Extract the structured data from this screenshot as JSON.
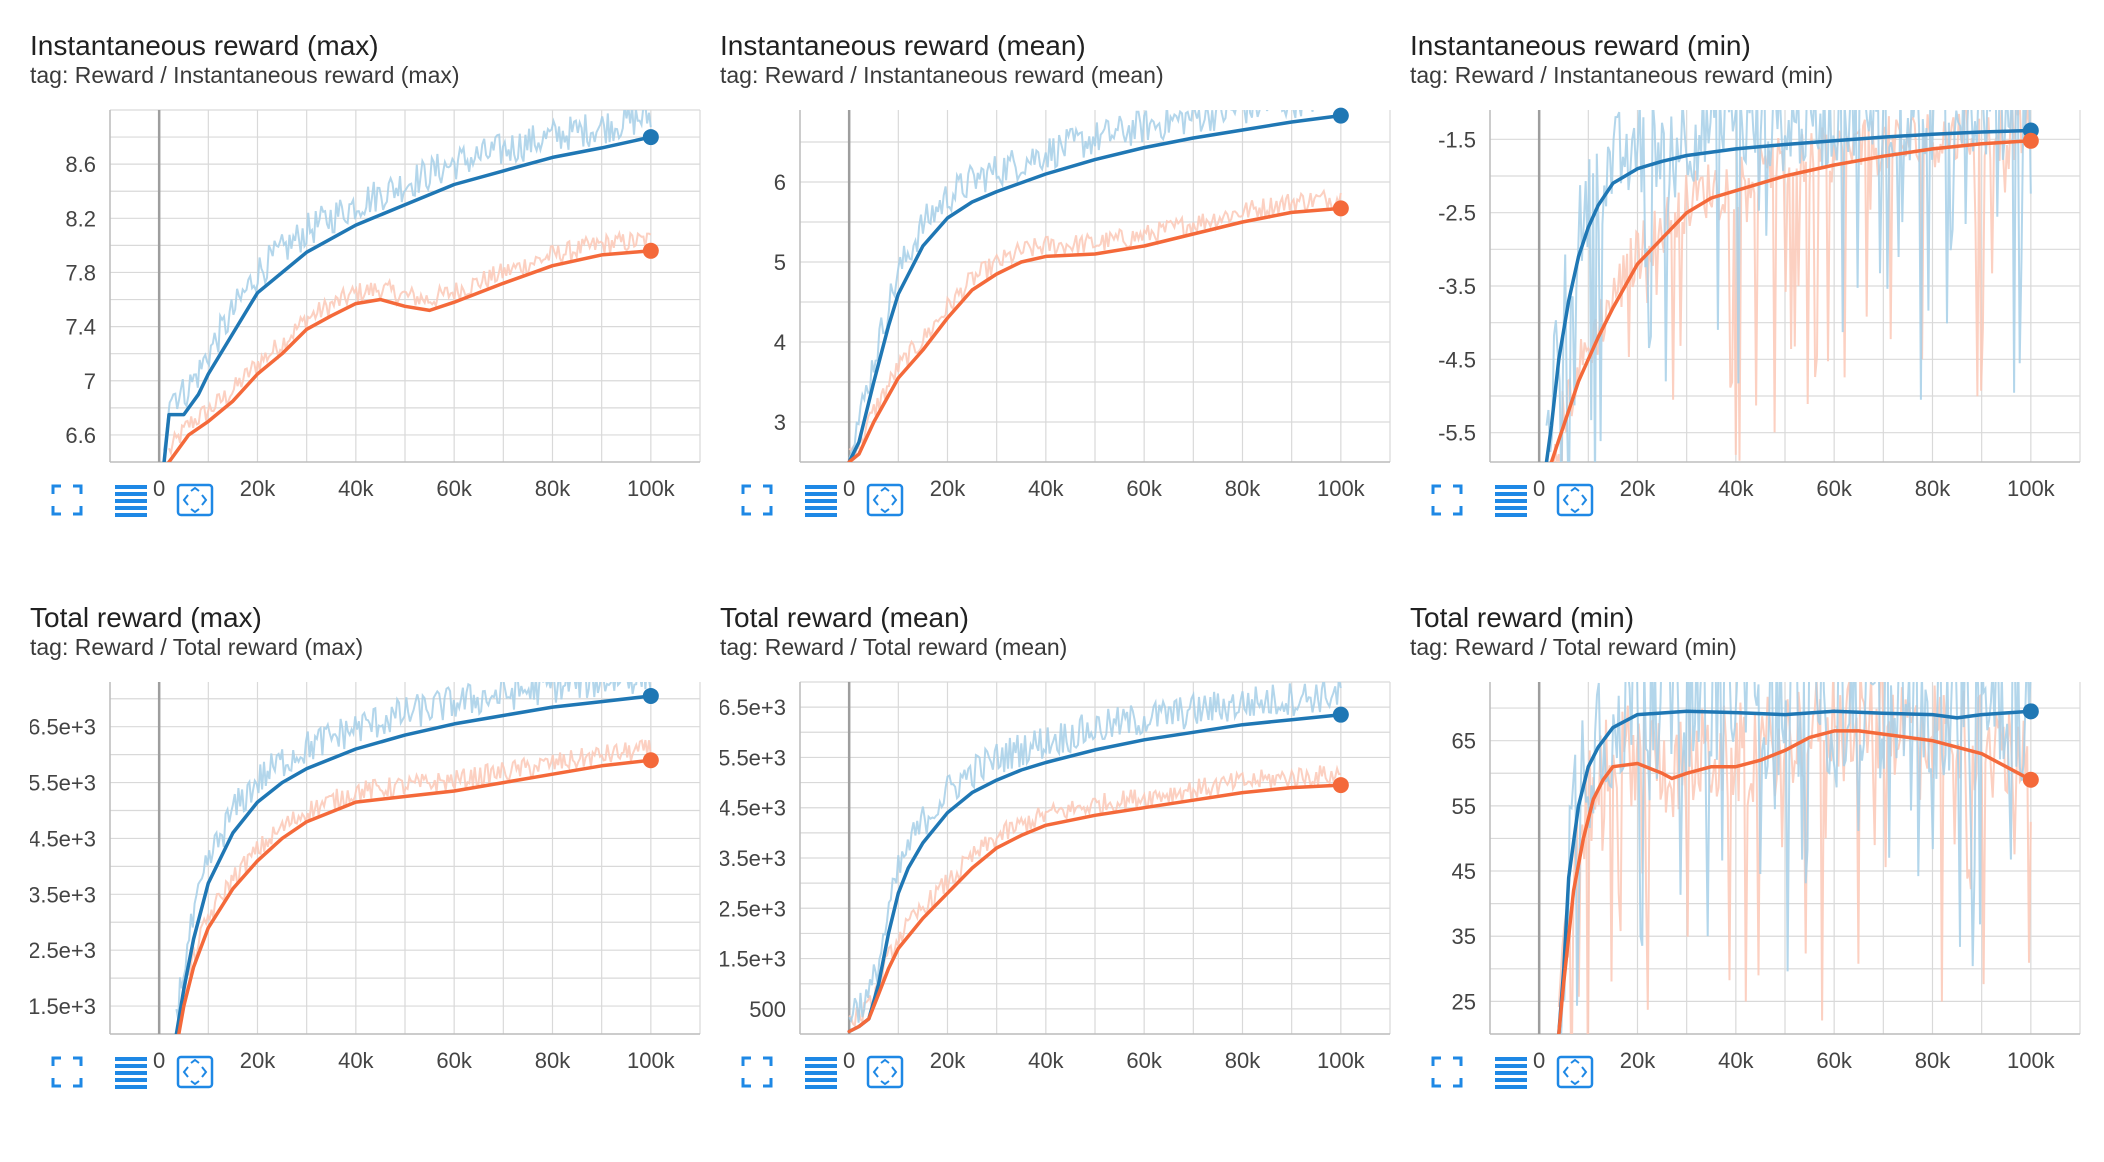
{
  "colors": {
    "blue": "#1f77b4",
    "blue_raw": "#a6cfe8",
    "orange": "#f4693a",
    "orange_raw": "#fcc8b6",
    "grid": "#d9d9d9",
    "tool_icon": "#1e88e5"
  },
  "toolbar_icons": [
    "fullscreen-icon",
    "data-table-icon",
    "fit-domain-icon"
  ],
  "chart_data": [
    {
      "type": "line",
      "title": "Instantaneous reward (max)",
      "tag": "tag: Reward / Instantaneous reward (max)",
      "xlim": [
        -10000,
        110000
      ],
      "ylim": [
        6.4,
        9.0
      ],
      "xticks": [
        0,
        20000,
        40000,
        60000,
        80000,
        100000
      ],
      "xtick_labels": [
        "0",
        "20k",
        "40k",
        "60k",
        "80k",
        "100k"
      ],
      "yticks": [
        6.6,
        7.0,
        7.4,
        7.8,
        8.2,
        8.6
      ],
      "ytick_labels": [
        "6.6",
        "7",
        "7.4",
        "7.8",
        "8.2",
        "8.6"
      ],
      "series": [
        {
          "color_key": "blue",
          "x": [
            1000,
            2000,
            3000,
            5000,
            8000,
            10000,
            15000,
            20000,
            25000,
            30000,
            40000,
            50000,
            60000,
            70000,
            80000,
            90000,
            100000
          ],
          "y": [
            6.4,
            6.75,
            6.75,
            6.75,
            6.9,
            7.05,
            7.35,
            7.65,
            7.8,
            7.95,
            8.15,
            8.3,
            8.45,
            8.55,
            8.65,
            8.72,
            8.8
          ]
        },
        {
          "color_key": "orange",
          "x": [
            2000,
            4000,
            6000,
            10000,
            15000,
            20000,
            25000,
            30000,
            35000,
            40000,
            45000,
            50000,
            55000,
            60000,
            70000,
            80000,
            90000,
            100000
          ],
          "y": [
            6.4,
            6.5,
            6.6,
            6.7,
            6.85,
            7.05,
            7.2,
            7.38,
            7.48,
            7.57,
            7.6,
            7.55,
            7.52,
            7.58,
            7.72,
            7.85,
            7.93,
            7.96
          ]
        }
      ]
    },
    {
      "type": "line",
      "title": "Instantaneous reward (mean)",
      "tag": "tag: Reward / Instantaneous reward (mean)",
      "xlim": [
        -10000,
        110000
      ],
      "ylim": [
        2.5,
        6.9
      ],
      "xticks": [
        0,
        20000,
        40000,
        60000,
        80000,
        100000
      ],
      "xtick_labels": [
        "0",
        "20k",
        "40k",
        "60k",
        "80k",
        "100k"
      ],
      "yticks": [
        3,
        4,
        5,
        6
      ],
      "ytick_labels": [
        "3",
        "4",
        "5",
        "6"
      ],
      "series": [
        {
          "color_key": "blue",
          "x": [
            0,
            2000,
            5000,
            8000,
            10000,
            15000,
            20000,
            25000,
            30000,
            40000,
            50000,
            60000,
            70000,
            80000,
            90000,
            100000
          ],
          "y": [
            2.5,
            2.75,
            3.5,
            4.2,
            4.6,
            5.2,
            5.55,
            5.75,
            5.88,
            6.1,
            6.28,
            6.43,
            6.55,
            6.65,
            6.75,
            6.83
          ]
        },
        {
          "color_key": "orange",
          "x": [
            0,
            2000,
            5000,
            10000,
            15000,
            20000,
            25000,
            30000,
            35000,
            40000,
            50000,
            60000,
            70000,
            80000,
            90000,
            100000
          ],
          "y": [
            2.5,
            2.6,
            3.0,
            3.55,
            3.9,
            4.3,
            4.65,
            4.85,
            5.0,
            5.07,
            5.1,
            5.2,
            5.35,
            5.5,
            5.62,
            5.67
          ]
        }
      ]
    },
    {
      "type": "line",
      "title": "Instantaneous reward (min)",
      "tag": "tag: Reward / Instantaneous reward (min)",
      "xlim": [
        -10000,
        110000
      ],
      "ylim": [
        -5.9,
        -1.1
      ],
      "xticks": [
        0,
        20000,
        40000,
        60000,
        80000,
        100000
      ],
      "xtick_labels": [
        "0",
        "20k",
        "40k",
        "60k",
        "80k",
        "100k"
      ],
      "yticks": [
        -5.5,
        -4.5,
        -3.5,
        -2.5,
        -1.5
      ],
      "ytick_labels": [
        "-5.5",
        "-4.5",
        "-3.5",
        "-2.5",
        "-1.5"
      ],
      "series": [
        {
          "color_key": "blue",
          "x": [
            1500,
            2500,
            4000,
            6000,
            8000,
            10000,
            12000,
            15000,
            20000,
            25000,
            30000,
            40000,
            50000,
            60000,
            70000,
            80000,
            90000,
            100000
          ],
          "y": [
            -5.9,
            -5.4,
            -4.5,
            -3.7,
            -3.1,
            -2.7,
            -2.4,
            -2.1,
            -1.9,
            -1.8,
            -1.72,
            -1.63,
            -1.57,
            -1.52,
            -1.47,
            -1.43,
            -1.4,
            -1.38
          ]
        },
        {
          "color_key": "orange",
          "x": [
            2500,
            4000,
            6000,
            8000,
            10000,
            12000,
            15000,
            20000,
            25000,
            30000,
            35000,
            40000,
            50000,
            60000,
            70000,
            80000,
            90000,
            100000
          ],
          "y": [
            -5.9,
            -5.6,
            -5.2,
            -4.8,
            -4.5,
            -4.2,
            -3.8,
            -3.2,
            -2.85,
            -2.5,
            -2.3,
            -2.2,
            -2.0,
            -1.85,
            -1.73,
            -1.63,
            -1.56,
            -1.52
          ]
        }
      ]
    },
    {
      "type": "line",
      "title": "Total reward (max)",
      "tag": "tag: Reward / Total reward (max)",
      "xlim": [
        -10000,
        110000
      ],
      "ylim": [
        1000,
        7300
      ],
      "xticks": [
        0,
        20000,
        40000,
        60000,
        80000,
        100000
      ],
      "xtick_labels": [
        "0",
        "20k",
        "40k",
        "60k",
        "80k",
        "100k"
      ],
      "yticks": [
        1500,
        2500,
        3500,
        4500,
        5500,
        6500
      ],
      "ytick_labels": [
        "1.5e+3",
        "2.5e+3",
        "3.5e+3",
        "4.5e+3",
        "5.5e+3",
        "6.5e+3"
      ],
      "series": [
        {
          "color_key": "blue",
          "x": [
            3500,
            5000,
            7000,
            10000,
            15000,
            20000,
            25000,
            30000,
            40000,
            50000,
            60000,
            70000,
            80000,
            90000,
            100000
          ],
          "y": [
            1000,
            1800,
            2700,
            3700,
            4600,
            5150,
            5500,
            5750,
            6100,
            6350,
            6550,
            6700,
            6850,
            6950,
            7050
          ]
        },
        {
          "color_key": "orange",
          "x": [
            4000,
            5000,
            7000,
            10000,
            15000,
            20000,
            25000,
            30000,
            40000,
            50000,
            60000,
            70000,
            80000,
            90000,
            100000
          ],
          "y": [
            1000,
            1500,
            2200,
            2900,
            3600,
            4100,
            4500,
            4800,
            5150,
            5250,
            5350,
            5500,
            5650,
            5800,
            5900
          ]
        }
      ]
    },
    {
      "type": "line",
      "title": "Total reward (mean)",
      "tag": "tag: Reward / Total reward (mean)",
      "xlim": [
        -10000,
        110000
      ],
      "ylim": [
        0,
        7000
      ],
      "xticks": [
        0,
        20000,
        40000,
        60000,
        80000,
        100000
      ],
      "xtick_labels": [
        "0",
        "20k",
        "40k",
        "60k",
        "80k",
        "100k"
      ],
      "yticks": [
        500,
        1500,
        2500,
        3500,
        4500,
        5500,
        6500
      ],
      "ytick_labels": [
        "500",
        "1.5e+3",
        "2.5e+3",
        "3.5e+3",
        "4.5e+3",
        "5.5e+3",
        "6.5e+3"
      ],
      "series": [
        {
          "color_key": "blue",
          "x": [
            0,
            2000,
            4000,
            6000,
            8000,
            10000,
            12000,
            15000,
            20000,
            25000,
            30000,
            35000,
            40000,
            50000,
            60000,
            70000,
            80000,
            90000,
            100000
          ],
          "y": [
            50,
            150,
            300,
            1000,
            2000,
            2800,
            3300,
            3800,
            4400,
            4800,
            5050,
            5250,
            5400,
            5650,
            5850,
            6000,
            6150,
            6250,
            6350
          ]
        },
        {
          "color_key": "orange",
          "x": [
            0,
            2000,
            4000,
            6000,
            8000,
            10000,
            15000,
            20000,
            25000,
            30000,
            35000,
            40000,
            50000,
            60000,
            70000,
            80000,
            90000,
            100000
          ],
          "y": [
            50,
            150,
            300,
            800,
            1300,
            1700,
            2300,
            2800,
            3300,
            3700,
            3950,
            4150,
            4350,
            4500,
            4650,
            4800,
            4900,
            4950
          ]
        }
      ]
    },
    {
      "type": "line",
      "title": "Total reward (min)",
      "tag": "tag: Reward / Total reward (min)",
      "xlim": [
        -10000,
        110000
      ],
      "ylim": [
        20,
        74
      ],
      "xticks": [
        0,
        20000,
        40000,
        60000,
        80000,
        100000
      ],
      "xtick_labels": [
        "0",
        "20k",
        "40k",
        "60k",
        "80k",
        "100k"
      ],
      "yticks": [
        25,
        35,
        45,
        55,
        65
      ],
      "ytick_labels": [
        "25",
        "35",
        "45",
        "55",
        "65"
      ],
      "series": [
        {
          "color_key": "blue",
          "x": [
            4000,
            5000,
            6000,
            8000,
            10000,
            12000,
            15000,
            20000,
            30000,
            40000,
            50000,
            60000,
            70000,
            80000,
            85000,
            90000,
            100000
          ],
          "y": [
            20,
            30,
            44,
            55,
            61,
            64,
            67,
            69,
            69.5,
            69.3,
            69,
            69.5,
            69.2,
            69,
            68.5,
            69,
            69.5
          ]
        },
        {
          "color_key": "orange",
          "x": [
            4000,
            5000,
            7000,
            9000,
            11000,
            13000,
            15000,
            20000,
            25000,
            27000,
            30000,
            35000,
            40000,
            45000,
            50000,
            55000,
            60000,
            65000,
            70000,
            80000,
            90000,
            100000
          ],
          "y": [
            20,
            28,
            42,
            50,
            56,
            59,
            61,
            61.5,
            60,
            59.2,
            60,
            61,
            61,
            62,
            63.5,
            65.5,
            66.5,
            66.5,
            66,
            65,
            63,
            59
          ]
        }
      ]
    }
  ]
}
